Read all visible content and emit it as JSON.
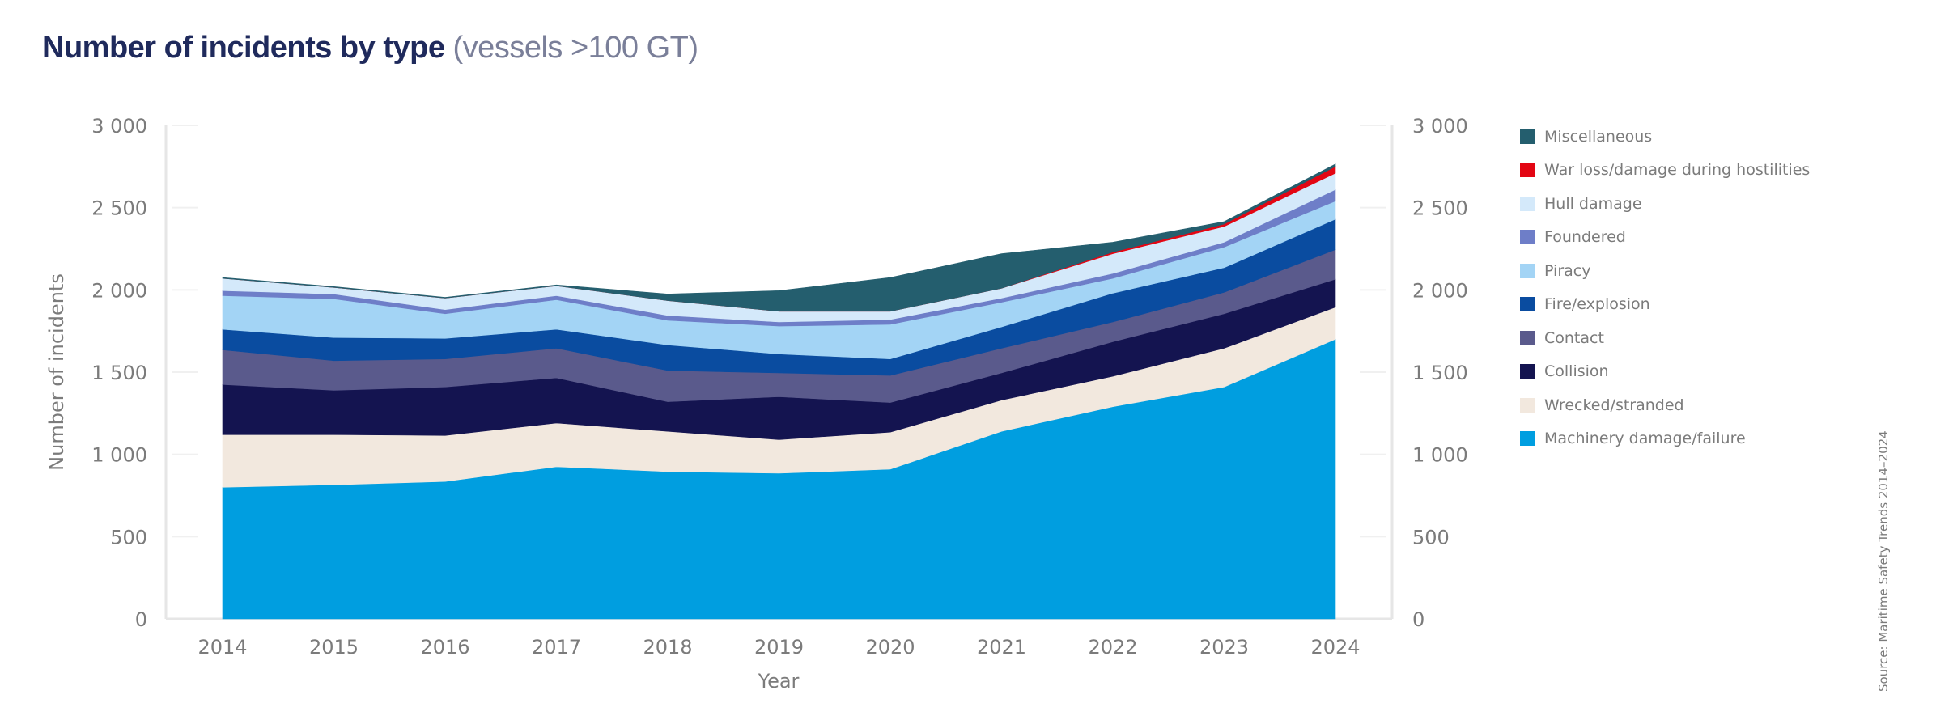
{
  "chart_data": {
    "type": "area",
    "stacked": true,
    "title": "Number of incidents by type",
    "subtitle": "(vessels >100 GT)",
    "xlabel": "Year",
    "ylabel": "Number of incidents",
    "ylim": [
      0,
      3000
    ],
    "yticks": [
      0,
      500,
      1000,
      1500,
      2000,
      2500,
      3000
    ],
    "ytick_labels": [
      "0",
      "500",
      "1 000",
      "1 500",
      "2 000",
      "2 500",
      "3 000"
    ],
    "secondary_y_axis": true,
    "grid": false,
    "legend_position": "right",
    "x": [
      "2014",
      "2015",
      "2016",
      "2017",
      "2018",
      "2019",
      "2020",
      "2021",
      "2022",
      "2023",
      "2024"
    ],
    "series": [
      {
        "name": "Machinery damage/failure",
        "color": "#009ee0",
        "values": [
          800,
          815,
          835,
          925,
          895,
          885,
          910,
          1140,
          1290,
          1410,
          1700
        ]
      },
      {
        "name": "Wrecked/stranded",
        "color": "#f2e8de",
        "values": [
          320,
          305,
          280,
          265,
          245,
          205,
          225,
          190,
          185,
          235,
          195
        ]
      },
      {
        "name": "Collision",
        "color": "#141450",
        "values": [
          305,
          270,
          295,
          275,
          180,
          260,
          180,
          165,
          210,
          210,
          170
        ]
      },
      {
        "name": "Contact",
        "color": "#5a5a8c",
        "values": [
          210,
          180,
          170,
          180,
          190,
          145,
          165,
          150,
          120,
          130,
          180
        ]
      },
      {
        "name": "Fire/explosion",
        "color": "#0a4ca0",
        "values": [
          125,
          140,
          125,
          115,
          155,
          115,
          100,
          130,
          175,
          150,
          185
        ]
      },
      {
        "name": "Piracy",
        "color": "#a3d4f5",
        "values": [
          205,
          235,
          150,
          180,
          150,
          170,
          210,
          150,
          90,
          125,
          110
        ]
      },
      {
        "name": "Foundered",
        "color": "#6e7ec8",
        "values": [
          30,
          30,
          25,
          25,
          30,
          25,
          30,
          25,
          30,
          30,
          70
        ]
      },
      {
        "name": "Hull damage",
        "color": "#d4e9fa",
        "values": [
          75,
          40,
          70,
          60,
          90,
          65,
          50,
          60,
          120,
          95,
          100
        ]
      },
      {
        "name": "War loss/damage during hostilities",
        "color": "#e30613",
        "values": [
          0,
          0,
          0,
          0,
          0,
          0,
          0,
          0,
          10,
          15,
          40
        ]
      },
      {
        "name": "Miscellaneous",
        "color": "#245e6e",
        "values": [
          5,
          5,
          5,
          5,
          40,
          125,
          205,
          210,
          60,
          15,
          15
        ]
      }
    ],
    "source": "Source: Maritime Safety Trends 2014–2024"
  }
}
